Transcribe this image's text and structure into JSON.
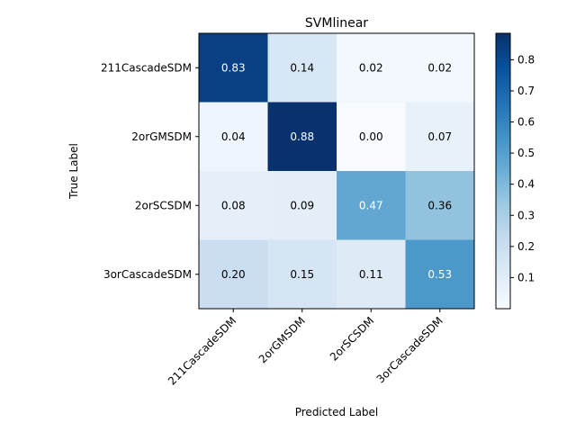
{
  "chart_data": {
    "type": "heatmap",
    "title": "SVMlinear",
    "xlabel": "Predicted Label",
    "ylabel": "True Label",
    "x_categories": [
      "211CascadeSDM",
      "2orGMSDM",
      "2orSCSDM",
      "3orCascadeSDM"
    ],
    "y_categories": [
      "211CascadeSDM",
      "2orGMSDM",
      "2orSCSDM",
      "3orCascadeSDM"
    ],
    "values": [
      [
        0.83,
        0.14,
        0.02,
        0.02
      ],
      [
        0.04,
        0.88,
        0.0,
        0.07
      ],
      [
        0.08,
        0.09,
        0.47,
        0.36
      ],
      [
        0.2,
        0.15,
        0.11,
        0.53
      ]
    ],
    "value_labels": [
      [
        "0.83",
        "0.14",
        "0.02",
        "0.02"
      ],
      [
        "0.04",
        "0.88",
        "0.00",
        "0.07"
      ],
      [
        "0.08",
        "0.09",
        "0.47",
        "0.36"
      ],
      [
        "0.20",
        "0.15",
        "0.11",
        "0.53"
      ]
    ],
    "colormap": "Blues",
    "colorbar": {
      "min": 0.0,
      "max": 0.885,
      "ticks": [
        0.1,
        0.2,
        0.3,
        0.4,
        0.5,
        0.6,
        0.7,
        0.8
      ]
    },
    "x_tick_rotation_deg": 45,
    "grid": false
  }
}
